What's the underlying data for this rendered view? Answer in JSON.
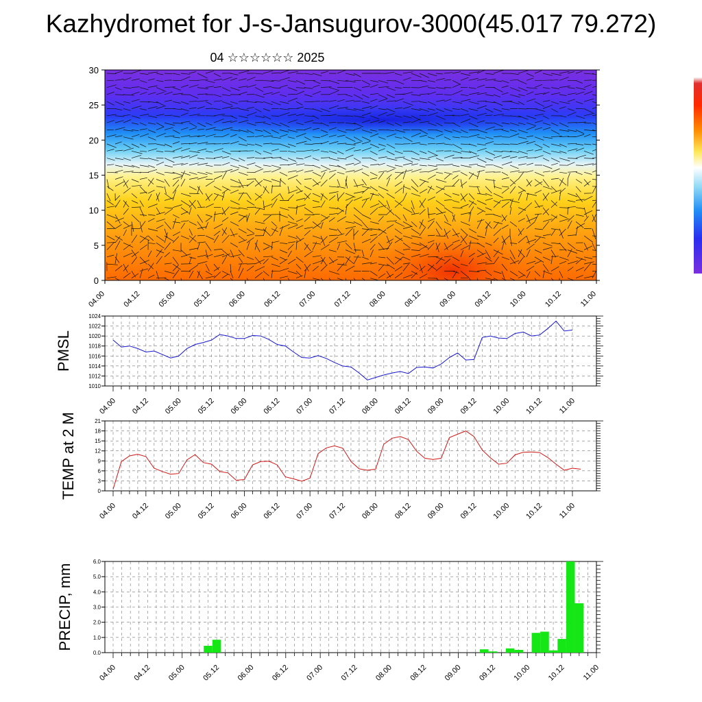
{
  "header": {
    "title": "Kazhydromet for J-s-Jansugurov-3000(45.017 79.272)",
    "subtitle": "04 ☆☆☆☆☆☆ 2025"
  },
  "time_labels": [
    "04.00",
    "04.12",
    "05.00",
    "05.12",
    "06.00",
    "06.12",
    "07.00",
    "07.12",
    "08.00",
    "08.12",
    "09.00",
    "09.12",
    "10.00",
    "10.12",
    "11.00"
  ],
  "chart_data": [
    {
      "type": "heatmap",
      "title": "",
      "x": [
        "04.00",
        "04.12",
        "05.00",
        "05.12",
        "06.00",
        "06.12",
        "07.00",
        "07.12",
        "08.00",
        "08.12",
        "09.00",
        "09.12",
        "10.00",
        "10.12",
        "11.00"
      ],
      "ylim": [
        0,
        30
      ],
      "yticks": [
        0,
        5,
        10,
        15,
        20,
        25,
        30
      ],
      "note": "vertical cross-section shaded field with wind vectors overlaid",
      "colorbar": "unlabeled vertical color scale (purple-blue-cyan-white-yellow-orange-red)"
    },
    {
      "type": "line",
      "ylabel": "PMSL",
      "ylim": [
        1010,
        1024
      ],
      "yticks": [
        1010,
        1012,
        1014,
        1016,
        1018,
        1020,
        1022,
        1024
      ],
      "color": "#1515d0",
      "x_ticks": [
        "04.00",
        "04.12",
        "05.00",
        "05.12",
        "06.00",
        "06.12",
        "07.00",
        "07.12",
        "08.00",
        "08.12",
        "09.00",
        "09.12",
        "10.00",
        "10.12",
        "11.00"
      ],
      "series": [
        {
          "values": [
            1019.2,
            1017.8,
            1018.0,
            1017.5,
            1016.8,
            1017.0,
            1016.3,
            1015.6,
            1016.0,
            1017.5,
            1018.3,
            1018.7,
            1019.2,
            1020.3,
            1020.0,
            1019.5,
            1019.5,
            1020.1,
            1020.0,
            1019.3,
            1018.3,
            1018.0,
            1016.8,
            1015.7,
            1015.6,
            1016.1,
            1015.5,
            1014.7,
            1014.0,
            1013.8,
            1012.6,
            1011.2,
            1011.7,
            1012.2,
            1012.6,
            1012.9,
            1012.5,
            1013.7,
            1013.8,
            1013.6,
            1014.4,
            1015.7,
            1016.6,
            1015.2,
            1015.3,
            1019.7,
            1020.0,
            1019.6,
            1019.5,
            1020.5,
            1020.8,
            1020.0,
            1020.2,
            1021.5,
            1023.0,
            1021.0,
            1021.2
          ]
        }
      ]
    },
    {
      "type": "line",
      "ylabel": "TEMP at 2 M",
      "ylim": [
        0,
        21
      ],
      "yticks": [
        0,
        3,
        6,
        9,
        12,
        15,
        18,
        21
      ],
      "color": "#d01515",
      "x_ticks": [
        "04.00",
        "04.12",
        "05.00",
        "05.12",
        "06.00",
        "06.12",
        "07.00",
        "07.12",
        "08.00",
        "08.12",
        "09.00",
        "09.12",
        "10.00",
        "10.12",
        "11.00"
      ],
      "series": [
        {
          "values": [
            0.5,
            8.8,
            10.5,
            11.0,
            10.3,
            6.8,
            5.8,
            5.0,
            5.2,
            9.3,
            10.9,
            8.5,
            8.0,
            5.8,
            5.4,
            3.2,
            3.4,
            7.8,
            8.8,
            8.9,
            7.8,
            4.2,
            3.6,
            2.9,
            3.8,
            11.2,
            12.9,
            13.5,
            12.8,
            8.8,
            6.6,
            6.2,
            6.5,
            14.0,
            15.8,
            16.3,
            15.4,
            11.9,
            9.8,
            9.4,
            9.8,
            16.0,
            17.0,
            18.0,
            16.3,
            12.3,
            9.9,
            8.0,
            8.3,
            10.8,
            11.6,
            11.7,
            11.5,
            10.0,
            8.0,
            6.2,
            6.8,
            6.5
          ]
        }
      ]
    },
    {
      "type": "bar",
      "ylabel": "PRECIP, mm",
      "ylim": [
        0,
        6
      ],
      "yticks": [
        "0.0",
        "1.0",
        "2.0",
        "3.0",
        "4.0",
        "5.0",
        "6.0"
      ],
      "color": "#15e615",
      "x_ticks": [
        "04.00",
        "04.12",
        "05.00",
        "05.12",
        "06.00",
        "06.12",
        "07.00",
        "07.12",
        "08.00",
        "08.12",
        "09.00",
        "09.12",
        "10.00",
        "10.12",
        "11.00"
      ],
      "bars": [
        {
          "hour": 33,
          "value": 0.45
        },
        {
          "hour": 36,
          "value": 0.85
        },
        {
          "hour": 129,
          "value": 0.22
        },
        {
          "hour": 132,
          "value": 0.08
        },
        {
          "hour": 138,
          "value": 0.28
        },
        {
          "hour": 141,
          "value": 0.18
        },
        {
          "hour": 147,
          "value": 1.3
        },
        {
          "hour": 150,
          "value": 1.38
        },
        {
          "hour": 153,
          "value": 0.15
        },
        {
          "hour": 156,
          "value": 0.9
        },
        {
          "hour": 159,
          "value": 6.0
        },
        {
          "hour": 162,
          "value": 3.25
        }
      ]
    }
  ]
}
